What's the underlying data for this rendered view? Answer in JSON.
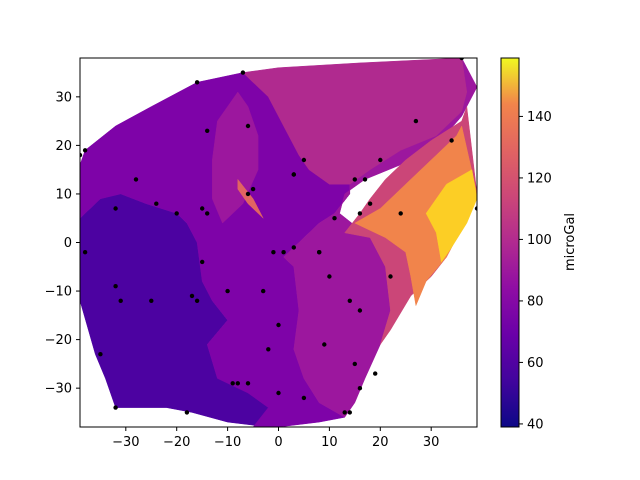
{
  "chart_data": {
    "type": "contourf",
    "xlim": [
      -39,
      39
    ],
    "ylim": [
      -38,
      38
    ],
    "x_ticks": [
      -30,
      -20,
      -10,
      0,
      10,
      20,
      30
    ],
    "y_ticks": [
      -30,
      -20,
      -10,
      0,
      10,
      20,
      30
    ],
    "x_tick_labels": [
      "−30",
      "−20",
      "−10",
      "0",
      "10",
      "20",
      "30"
    ],
    "y_tick_labels": [
      "−30",
      "−20",
      "−10",
      "0",
      "10",
      "20",
      "30"
    ],
    "colorbar": {
      "label": "microGal",
      "min": 39,
      "max": 159,
      "ticks": [
        40,
        60,
        80,
        100,
        120,
        140
      ],
      "tick_labels": [
        "40",
        "60",
        "80",
        "100",
        "120",
        "140"
      ],
      "colormap": "plasma"
    },
    "regions": [
      {
        "level": 55,
        "color": "#4c02a1",
        "points": [
          [
            -39,
            -11
          ],
          [
            -39,
            5
          ],
          [
            -35,
            9
          ],
          [
            -31,
            10
          ],
          [
            -26,
            8
          ],
          [
            -20,
            6
          ],
          [
            -18,
            4
          ],
          [
            -16,
            0
          ],
          [
            -15,
            -8
          ],
          [
            -13,
            -12
          ],
          [
            -10,
            -16
          ],
          [
            -14,
            -21
          ],
          [
            -12,
            -28
          ],
          [
            -9,
            -29
          ],
          [
            -5,
            -31
          ],
          [
            -1,
            -33
          ],
          [
            0,
            -34
          ],
          [
            -2,
            -38
          ],
          [
            -10,
            -37
          ],
          [
            -17,
            -35
          ],
          [
            -22,
            -34
          ],
          [
            -32,
            -34
          ],
          [
            -34,
            -28
          ],
          [
            -36,
            -23
          ],
          [
            -39,
            -12
          ]
        ]
      },
      {
        "level": 70,
        "color": "#7e03a8",
        "points": [
          [
            -39,
            16
          ],
          [
            -38,
            19
          ],
          [
            -32,
            24
          ],
          [
            -25,
            28
          ],
          [
            -16,
            33
          ],
          [
            -7,
            35
          ],
          [
            -5,
            33
          ],
          [
            1,
            28
          ],
          [
            4,
            22
          ],
          [
            6,
            17
          ],
          [
            10,
            15
          ],
          [
            12,
            13
          ],
          [
            14,
            13
          ],
          [
            14,
            10
          ],
          [
            11,
            6
          ],
          [
            8,
            4
          ],
          [
            4,
            0
          ],
          [
            1,
            -3
          ],
          [
            3,
            -5
          ],
          [
            4,
            -14
          ],
          [
            3,
            -22
          ],
          [
            5,
            -28
          ],
          [
            8,
            -33
          ],
          [
            13,
            -36
          ],
          [
            8,
            -37
          ],
          [
            0,
            -38
          ],
          [
            -5,
            -38
          ],
          [
            -2,
            -34
          ],
          [
            -6,
            -31
          ],
          [
            -12,
            -28
          ],
          [
            -14,
            -21
          ],
          [
            -10,
            -16
          ],
          [
            -13,
            -12
          ],
          [
            -15,
            -8
          ],
          [
            -16,
            0
          ],
          [
            -18,
            4
          ],
          [
            -20,
            6
          ],
          [
            -26,
            8
          ],
          [
            -31,
            10
          ],
          [
            -35,
            9
          ],
          [
            -39,
            5
          ]
        ]
      },
      {
        "level": 80,
        "color": "#9c179e",
        "points": [
          [
            -7,
            35
          ],
          [
            10,
            36
          ],
          [
            36,
            38
          ],
          [
            39,
            32
          ],
          [
            36,
            26
          ],
          [
            31,
            20
          ],
          [
            24,
            16
          ],
          [
            17,
            13
          ],
          [
            13,
            10
          ],
          [
            12,
            6
          ],
          [
            18,
            1
          ],
          [
            21,
            -5
          ],
          [
            22,
            -14
          ],
          [
            20,
            -21
          ],
          [
            17,
            -28
          ],
          [
            15,
            -33
          ],
          [
            13,
            -36
          ],
          [
            8,
            -33
          ],
          [
            5,
            -28
          ],
          [
            3,
            -22
          ],
          [
            4,
            -14
          ],
          [
            3,
            -5
          ],
          [
            1,
            -3
          ],
          [
            4,
            0
          ],
          [
            8,
            4
          ],
          [
            11,
            6
          ],
          [
            14,
            10
          ],
          [
            14,
            13
          ],
          [
            12,
            13
          ],
          [
            10,
            15
          ],
          [
            6,
            17
          ],
          [
            4,
            22
          ],
          [
            1,
            28
          ],
          [
            -5,
            33
          ]
        ]
      },
      {
        "level": 85,
        "color": "#9c179e",
        "points": [
          [
            -13,
            17
          ],
          [
            -12,
            25
          ],
          [
            -8,
            31
          ],
          [
            -6,
            28
          ],
          [
            -4,
            22
          ],
          [
            -4,
            15
          ],
          [
            -7,
            8
          ],
          [
            -11,
            4
          ],
          [
            -13,
            9
          ]
        ]
      },
      {
        "level": 95,
        "color": "#b02a8f",
        "points": [
          [
            -7,
            35
          ],
          [
            0,
            36
          ],
          [
            16,
            37
          ],
          [
            36,
            38
          ],
          [
            37,
            31
          ],
          [
            36,
            27
          ],
          [
            31,
            22
          ],
          [
            24,
            19
          ],
          [
            18,
            15
          ],
          [
            14,
            12
          ],
          [
            10,
            12
          ],
          [
            6,
            15
          ],
          [
            4,
            18
          ],
          [
            1,
            24
          ],
          [
            -2,
            30
          ]
        ]
      },
      {
        "level": 105,
        "color": "#cb4678",
        "points": [
          [
            13,
            2
          ],
          [
            16,
            6
          ],
          [
            18,
            9
          ],
          [
            21,
            13
          ],
          [
            25,
            17
          ],
          [
            30,
            21
          ],
          [
            36,
            25
          ],
          [
            37,
            28
          ],
          [
            39,
            10
          ],
          [
            36,
            3
          ],
          [
            33,
            -3
          ],
          [
            30,
            -7
          ],
          [
            26,
            -11
          ],
          [
            22,
            -18
          ],
          [
            20,
            -21
          ],
          [
            22,
            -14
          ],
          [
            21,
            -5
          ],
          [
            18,
            1
          ]
        ]
      },
      {
        "level": 120,
        "color": "#f1844b",
        "points": [
          [
            15,
            4
          ],
          [
            20,
            7
          ],
          [
            23,
            10
          ],
          [
            27,
            14
          ],
          [
            31,
            18
          ],
          [
            35,
            22
          ],
          [
            36,
            24
          ],
          [
            39,
            10
          ],
          [
            36,
            3
          ],
          [
            33,
            -3
          ],
          [
            29,
            -8
          ],
          [
            27,
            -13
          ],
          [
            26,
            -7
          ],
          [
            25,
            -2
          ],
          [
            21,
            1
          ]
        ]
      },
      {
        "level": 150,
        "color": "#fcce25",
        "points": [
          [
            29,
            6
          ],
          [
            33,
            12
          ],
          [
            38,
            15
          ],
          [
            39,
            9
          ],
          [
            37,
            4
          ],
          [
            34,
            -1
          ],
          [
            32,
            -4
          ],
          [
            31,
            2
          ]
        ]
      },
      {
        "level": 110,
        "color": "#e16462",
        "points": [
          [
            -8,
            11
          ],
          [
            -6,
            8
          ],
          [
            -3,
            5
          ],
          [
            -5,
            9
          ],
          [
            -8,
            13
          ]
        ]
      }
    ],
    "points": [
      [
        -39,
        18
      ],
      [
        -38,
        19
      ],
      [
        -28,
        13
      ],
      [
        -32,
        7
      ],
      [
        -24,
        8
      ],
      [
        -20,
        6
      ],
      [
        -16,
        33
      ],
      [
        -14,
        23
      ],
      [
        -15,
        7
      ],
      [
        -14,
        6
      ],
      [
        -7,
        35
      ],
      [
        -6,
        24
      ],
      [
        -6,
        10
      ],
      [
        -5,
        11
      ],
      [
        -15,
        -4
      ],
      [
        -10,
        -10
      ],
      [
        -17,
        -11
      ],
      [
        -16,
        -12
      ],
      [
        -25,
        -12
      ],
      [
        -32,
        -9
      ],
      [
        -31,
        -12
      ],
      [
        -38,
        -2
      ],
      [
        -35,
        -23
      ],
      [
        -32,
        -34
      ],
      [
        -18,
        -35
      ],
      [
        -9,
        -29
      ],
      [
        -8,
        -29
      ],
      [
        -6,
        -29
      ],
      [
        -3,
        -10
      ],
      [
        -1,
        -2
      ],
      [
        1,
        -2
      ],
      [
        3,
        -1
      ],
      [
        0,
        -17
      ],
      [
        -2,
        -22
      ],
      [
        0,
        -31
      ],
      [
        5,
        -32
      ],
      [
        3,
        14
      ],
      [
        3,
        14
      ],
      [
        5,
        17
      ],
      [
        8,
        -2
      ],
      [
        8,
        -2
      ],
      [
        10,
        -7
      ],
      [
        11,
        5
      ],
      [
        9,
        -21
      ],
      [
        14,
        -12
      ],
      [
        15,
        13
      ],
      [
        16,
        6
      ],
      [
        17,
        13
      ],
      [
        18,
        8
      ],
      [
        20,
        17
      ],
      [
        24,
        6
      ],
      [
        22,
        -7
      ],
      [
        16,
        -14
      ],
      [
        15,
        -25
      ],
      [
        16,
        -30
      ],
      [
        19,
        -27
      ],
      [
        13,
        -35
      ],
      [
        14,
        -35
      ],
      [
        27,
        25
      ],
      [
        34,
        21
      ],
      [
        39,
        7
      ],
      [
        36,
        38
      ]
    ]
  }
}
